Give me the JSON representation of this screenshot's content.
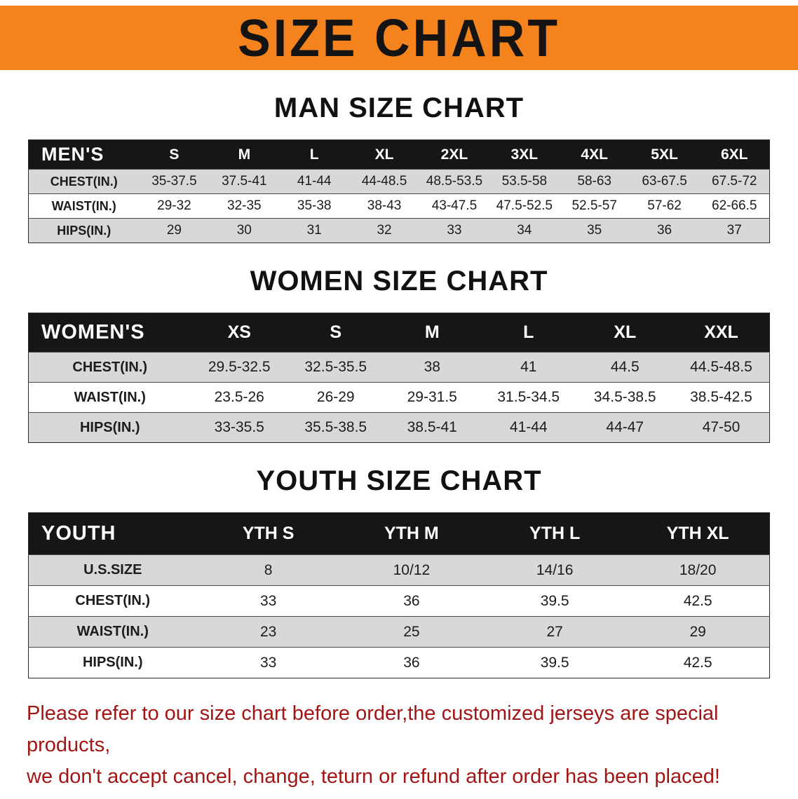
{
  "banner": {
    "title": "SIZE CHART"
  },
  "colors": {
    "banner_bg": "#F5831D",
    "table_header_bg": "#161616",
    "row_alt_bg": "#D8D8D8",
    "footer_text": "#A31515"
  },
  "chart_data": [
    {
      "type": "table",
      "title": "MAN SIZE CHART",
      "corner": "MEN'S",
      "columns": [
        "S",
        "M",
        "L",
        "XL",
        "2XL",
        "3XL",
        "4XL",
        "5XL",
        "6XL"
      ],
      "rows": [
        {
          "label": "CHEST(IN.)",
          "values": [
            "35-37.5",
            "37.5-41",
            "41-44",
            "44-48.5",
            "48.5-53.5",
            "53.5-58",
            "58-63",
            "63-67.5",
            "67.5-72"
          ]
        },
        {
          "label": "WAIST(IN.)",
          "values": [
            "29-32",
            "32-35",
            "35-38",
            "38-43",
            "43-47.5",
            "47.5-52.5",
            "52.5-57",
            "57-62",
            "62-66.5"
          ]
        },
        {
          "label": "HIPS(IN.)",
          "values": [
            "29",
            "30",
            "31",
            "32",
            "33",
            "34",
            "35",
            "36",
            "37"
          ]
        }
      ]
    },
    {
      "type": "table",
      "title": "WOMEN SIZE CHART",
      "corner": "WOMEN'S",
      "columns": [
        "XS",
        "S",
        "M",
        "L",
        "XL",
        "XXL"
      ],
      "rows": [
        {
          "label": "CHEST(IN.)",
          "values": [
            "29.5-32.5",
            "32.5-35.5",
            "38",
            "41",
            "44.5",
            "44.5-48.5"
          ]
        },
        {
          "label": "WAIST(IN.)",
          "values": [
            "23.5-26",
            "26-29",
            "29-31.5",
            "31.5-34.5",
            "34.5-38.5",
            "38.5-42.5"
          ]
        },
        {
          "label": "HIPS(IN.)",
          "values": [
            "33-35.5",
            "35.5-38.5",
            "38.5-41",
            "41-44",
            "44-47",
            "47-50"
          ]
        }
      ]
    },
    {
      "type": "table",
      "title": "YOUTH SIZE CHART",
      "corner": "YOUTH",
      "columns": [
        "YTH S",
        "YTH M",
        "YTH L",
        "YTH XL"
      ],
      "rows": [
        {
          "label": "U.S.SIZE",
          "values": [
            "8",
            "10/12",
            "14/16",
            "18/20"
          ]
        },
        {
          "label": "CHEST(IN.)",
          "values": [
            "33",
            "36",
            "39.5",
            "42.5"
          ]
        },
        {
          "label": "WAIST(IN.)",
          "values": [
            "23",
            "25",
            "27",
            "29"
          ]
        },
        {
          "label": "HIPS(IN.)",
          "values": [
            "33",
            "36",
            "39.5",
            "42.5"
          ]
        }
      ]
    }
  ],
  "footer": {
    "line1": "Please refer to our size chart before order,the customized jerseys are special products,",
    "line2": "we don't accept cancel, change, teturn or refund after order has been placed!"
  }
}
